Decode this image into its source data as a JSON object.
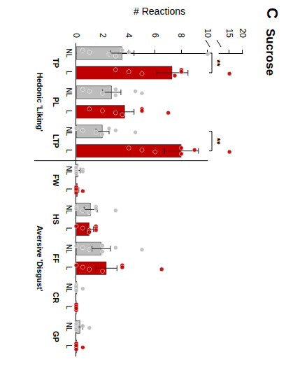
{
  "chart_data": {
    "type": "bar",
    "panel": "C",
    "title": "Sucrose",
    "ylabel": "# Reactions",
    "categories": [
      "TP",
      "PL",
      "LTP",
      "FW",
      "HS",
      "FF",
      "CR",
      "GP"
    ],
    "groups": [
      {
        "label": "Hedonic 'Liking'",
        "categories": [
          "TP",
          "PL",
          "LTP"
        ]
      },
      {
        "label": "Aversive 'Disgust'",
        "categories": [
          "FW",
          "HS",
          "FF",
          "CR",
          "GP"
        ]
      }
    ],
    "series": [
      {
        "name": "NL",
        "color": "#bdbdbd",
        "values": [
          3.5,
          2.7,
          2.0,
          0.15,
          1.1,
          1.9,
          0.05,
          0.3
        ],
        "errors": [
          0.9,
          0.7,
          0.5,
          0.15,
          0.5,
          0.7,
          0.05,
          0.2
        ],
        "points": [
          [
            0.5,
            1,
            2.5,
            3,
            3.5,
            4,
            10
          ],
          [
            0.5,
            1,
            2,
            3,
            3,
            4.5,
            5
          ],
          [
            0,
            0.5,
            1.5,
            2,
            2.5,
            3,
            4.5
          ],
          [
            0,
            0,
            0,
            0,
            0,
            0.5,
            0.5
          ],
          [
            0,
            0,
            0.5,
            1,
            1.5,
            1.5,
            3
          ],
          [
            0,
            0.5,
            1,
            2,
            2,
            3,
            5
          ],
          [
            0,
            0,
            0,
            0,
            0,
            0,
            0.5
          ],
          [
            0,
            0,
            0,
            0,
            0,
            0.5,
            1
          ]
        ]
      },
      {
        "name": "L",
        "color": "#c00000",
        "values": [
          7.3,
          3.7,
          8.0,
          0.1,
          1.0,
          2.3,
          0.0,
          0.05
        ],
        "errors": [
          1.2,
          0.7,
          1.3,
          0.1,
          0.3,
          0.8,
          0.0,
          0.05
        ],
        "points": [
          [
            3,
            4,
            5,
            7.5,
            8,
            8,
            15
          ],
          [
            1,
            2,
            3,
            3.5,
            5,
            5,
            7
          ],
          [
            4,
            5,
            6,
            8,
            8,
            9,
            15
          ],
          [
            0,
            0,
            0,
            0,
            0,
            0,
            0.5
          ],
          [
            0,
            0.5,
            1,
            1,
            1.5,
            1.5,
            1.5
          ],
          [
            0,
            0.5,
            1,
            2,
            3.5,
            3.5,
            6.5
          ],
          [
            0,
            0,
            0,
            0,
            0,
            0,
            0
          ],
          [
            0,
            0,
            0,
            0,
            0,
            0,
            0.5
          ]
        ]
      }
    ],
    "significance": [
      {
        "category": "TP",
        "label": "**"
      },
      {
        "category": "LTP",
        "label": "**"
      }
    ],
    "ylim": [
      0,
      20
    ],
    "ybreak": [
      10,
      11
    ],
    "yticks": [
      0,
      2,
      4,
      6,
      8,
      10,
      15,
      20
    ],
    "grid": false
  }
}
